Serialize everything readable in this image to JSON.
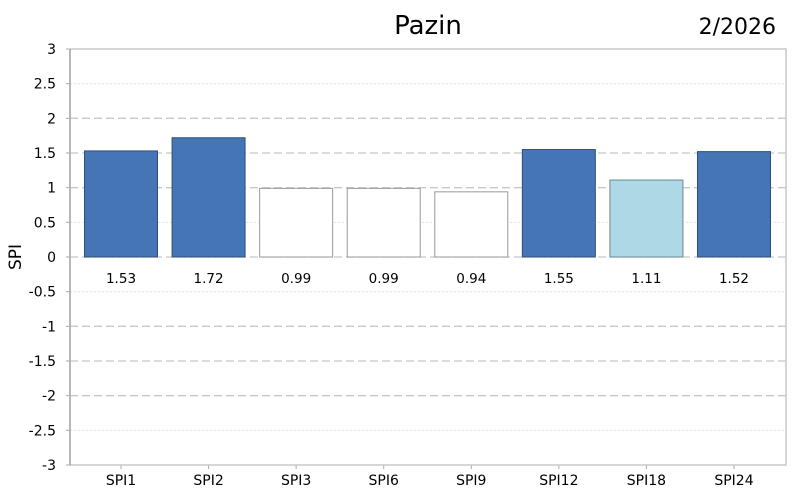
{
  "chart_data": {
    "type": "bar",
    "title": "Pazin",
    "subtitle": "2/2026",
    "ylabel": "SPI",
    "xlabel": "",
    "ylim": [
      -3,
      3
    ],
    "yticks": [
      "3",
      "2.5",
      "2",
      "1.5",
      "1",
      "0.5",
      "0",
      "-0.5",
      "-1",
      "-1.5",
      "-2",
      "-2.5",
      "-3"
    ],
    "grid": true,
    "categories": [
      "SPI1",
      "SPI2",
      "SPI3",
      "SPI6",
      "SPI9",
      "SPI12",
      "SPI18",
      "SPI24"
    ],
    "values": [
      1.53,
      1.72,
      0.99,
      0.99,
      0.94,
      1.55,
      1.11,
      1.52
    ],
    "labels": [
      "1.53",
      "1.72",
      "0.99",
      "0.99",
      "0.94",
      "1.55",
      "1.11",
      "1.52"
    ],
    "colors": [
      "#4575b5",
      "#4575b5",
      "#ffffff",
      "#ffffff",
      "#ffffff",
      "#4575b5",
      "#add8e6",
      "#4575b5"
    ]
  }
}
